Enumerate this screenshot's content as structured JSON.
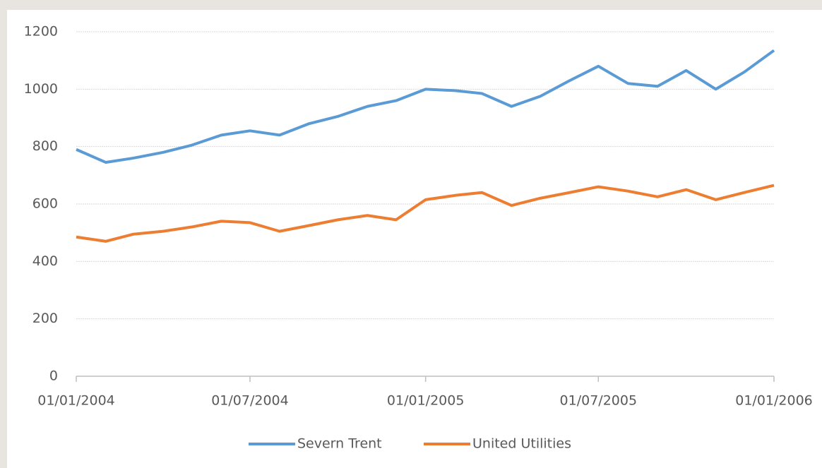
{
  "chart_data": {
    "type": "line",
    "x": [
      "01/01/2004",
      "01/02/2004",
      "01/03/2004",
      "01/04/2004",
      "01/05/2004",
      "01/06/2004",
      "01/07/2004",
      "01/08/2004",
      "01/09/2004",
      "01/10/2004",
      "01/11/2004",
      "01/12/2004",
      "01/01/2005",
      "01/02/2005",
      "01/03/2005",
      "01/04/2005",
      "01/05/2005",
      "01/06/2005",
      "01/07/2005",
      "01/08/2005",
      "01/09/2005",
      "01/10/2005",
      "01/11/2005",
      "01/12/2005",
      "01/01/2006"
    ],
    "series": [
      {
        "name": "Severn Trent",
        "color": "#5b9bd5",
        "values": [
          790,
          745,
          760,
          780,
          805,
          840,
          855,
          840,
          880,
          905,
          940,
          960,
          1000,
          995,
          985,
          940,
          975,
          1030,
          1080,
          1020,
          1010,
          1065,
          1000,
          1060,
          1135
        ]
      },
      {
        "name": "United Utilities",
        "color": "#ed7d31",
        "values": [
          485,
          470,
          495,
          505,
          520,
          540,
          535,
          505,
          525,
          545,
          560,
          545,
          615,
          630,
          640,
          595,
          620,
          640,
          660,
          645,
          625,
          650,
          615,
          640,
          665
        ]
      }
    ],
    "xlim": [
      "01/01/2004",
      "01/01/2006"
    ],
    "xticks": [
      "01/01/2004",
      "01/07/2004",
      "01/01/2005",
      "01/07/2005",
      "01/01/2006"
    ],
    "ylim": [
      0,
      1200
    ],
    "yticks": [
      0,
      200,
      400,
      600,
      800,
      1000,
      1200
    ],
    "grid": true,
    "legend": "bottom"
  }
}
